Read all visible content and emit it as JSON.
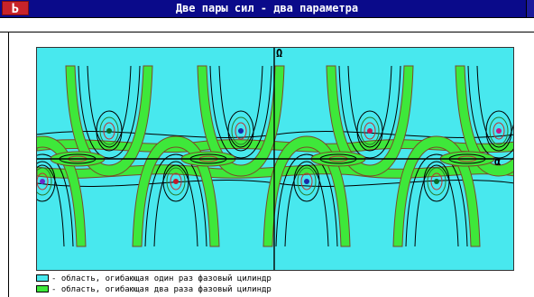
{
  "window": {
    "title": "Две пары сил - два параметра",
    "system_button_label": "Ь"
  },
  "plot": {
    "y_axis_label": "Ω",
    "x_axis_label": "α"
  },
  "legend": [
    {
      "text": "- область, огибающая один раз фазовый цилиндр",
      "color": "#48e8ee"
    },
    {
      "text": "- область, огибающая два раза фазовый цилиндр",
      "color": "#3ee83a"
    }
  ],
  "colors": {
    "background_region": "#48e8ee",
    "band_region": "#3ee83a",
    "title_bar": "#0a0a8a",
    "system_button": "#c8232a"
  }
}
